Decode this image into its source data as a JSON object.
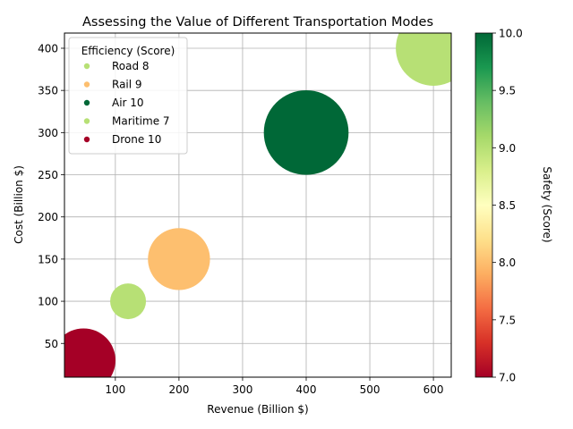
{
  "chart_data": {
    "type": "scatter",
    "title": "Assessing the Value of Different Transportation Modes",
    "xlabel": "Revenue (Billion $)",
    "ylabel": "Cost (Billion $)",
    "xlim": [
      20,
      628
    ],
    "ylim": [
      10,
      418
    ],
    "xticks": [
      100,
      200,
      300,
      400,
      500,
      600
    ],
    "yticks": [
      50,
      100,
      150,
      200,
      250,
      300,
      350,
      400
    ],
    "grid": true,
    "legend": {
      "title": "Efficiency (Score)",
      "placement": "top-left",
      "entries": [
        {
          "label": "Road 8",
          "color": "#b7e075"
        },
        {
          "label": "Rail 9",
          "color": "#fdbf6f"
        },
        {
          "label": "Air 10",
          "color": "#006837"
        },
        {
          "label": "Maritime 7",
          "color": "#b7e075"
        },
        {
          "label": "Drone 10",
          "color": "#a50026"
        }
      ]
    },
    "colorbar": {
      "label": "Safety (Score)",
      "range": [
        7.0,
        10.0
      ],
      "ticks": [
        "7.0",
        "7.5",
        "8.0",
        "8.5",
        "9.0",
        "9.5",
        "10.0"
      ],
      "colormap": "RdYlGn"
    },
    "points": [
      {
        "name": "Road",
        "revenue": 600,
        "cost": 400,
        "safety": 9,
        "efficiency": 8,
        "color": "#b7e075"
      },
      {
        "name": "Rail",
        "revenue": 200,
        "cost": 150,
        "safety": 8,
        "efficiency": 9,
        "color": "#fdbf6f"
      },
      {
        "name": "Air",
        "revenue": 400,
        "cost": 300,
        "safety": 10,
        "efficiency": 10,
        "color": "#006837"
      },
      {
        "name": "Maritime",
        "revenue": 120,
        "cost": 100,
        "safety": 9,
        "efficiency": 7,
        "color": "#b7e075"
      },
      {
        "name": "Drone",
        "revenue": 50,
        "cost": 30,
        "safety": 7,
        "efficiency": 10,
        "color": "#a50026"
      }
    ]
  }
}
